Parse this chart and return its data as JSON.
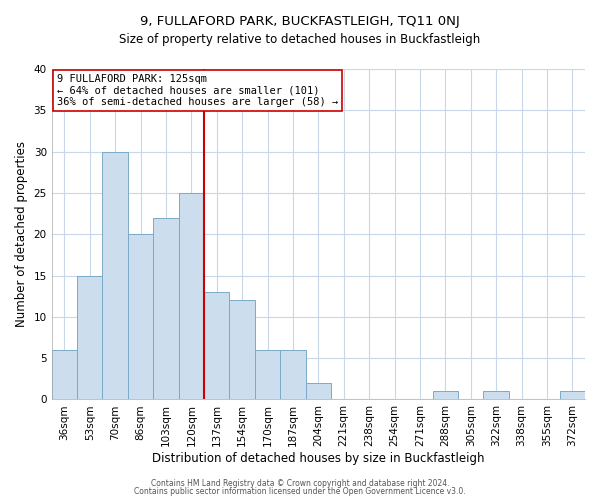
{
  "title": "9, FULLAFORD PARK, BUCKFASTLEIGH, TQ11 0NJ",
  "subtitle": "Size of property relative to detached houses in Buckfastleigh",
  "xlabel": "Distribution of detached houses by size in Buckfastleigh",
  "ylabel": "Number of detached properties",
  "bar_labels": [
    "36sqm",
    "53sqm",
    "70sqm",
    "86sqm",
    "103sqm",
    "120sqm",
    "137sqm",
    "154sqm",
    "170sqm",
    "187sqm",
    "204sqm",
    "221sqm",
    "238sqm",
    "254sqm",
    "271sqm",
    "288sqm",
    "305sqm",
    "322sqm",
    "338sqm",
    "355sqm",
    "372sqm"
  ],
  "bar_values": [
    6,
    15,
    30,
    20,
    22,
    25,
    13,
    12,
    6,
    6,
    2,
    0,
    0,
    0,
    0,
    1,
    0,
    1,
    0,
    0,
    1
  ],
  "bar_color": "#ccdded",
  "bar_edge_color": "#7aaac8",
  "vline_x_index": 5.5,
  "vline_color": "#cc0000",
  "ylim": [
    0,
    40
  ],
  "yticks": [
    0,
    5,
    10,
    15,
    20,
    25,
    30,
    35,
    40
  ],
  "annotation_lines": [
    "9 FULLAFORD PARK: 125sqm",
    "← 64% of detached houses are smaller (101)",
    "36% of semi-detached houses are larger (58) →"
  ],
  "annotation_box_color": "#ffffff",
  "annotation_box_edge": "#cc0000",
  "footnote1": "Contains HM Land Registry data © Crown copyright and database right 2024.",
  "footnote2": "Contains public sector information licensed under the Open Government Licence v3.0.",
  "background_color": "#ffffff",
  "plot_bg_color": "#ffffff",
  "grid_color": "#c8d8e8",
  "title_fontsize": 9.5,
  "subtitle_fontsize": 8.5,
  "xlabel_fontsize": 8.5,
  "ylabel_fontsize": 8.5,
  "tick_fontsize": 7.5
}
